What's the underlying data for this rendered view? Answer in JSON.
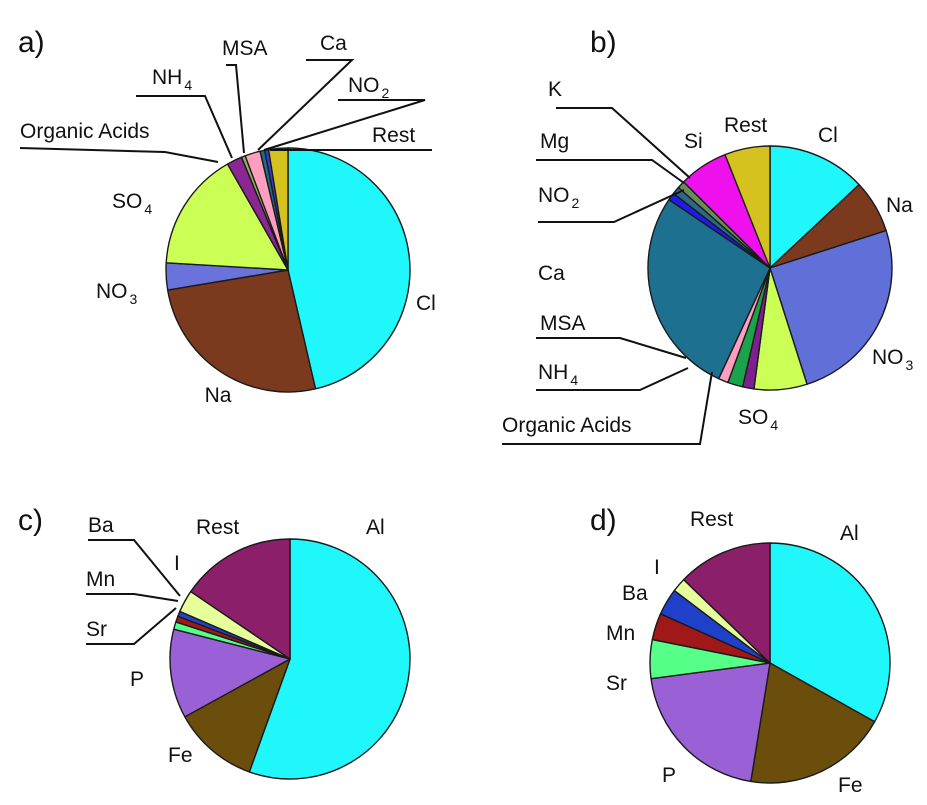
{
  "chart_data": [
    {
      "type": "pie",
      "panel_label": "a)",
      "start": "12 o'clock",
      "direction": "clockwise",
      "slices": [
        {
          "label": "Cl",
          "sub": "",
          "value": 45.5,
          "color": "#1ff7fb"
        },
        {
          "label": "Na",
          "sub": "",
          "value": 25.5,
          "color": "#7b3a1e"
        },
        {
          "label": "NO",
          "sub": "3",
          "value": 3.5,
          "color": "#6a72dc"
        },
        {
          "label": "SO",
          "sub": "4",
          "value": 15.5,
          "color": "#ccff55"
        },
        {
          "label": "Organic Acids",
          "sub": "",
          "value": 2.0,
          "color": "#8c2693"
        },
        {
          "label": "NH",
          "sub": "4",
          "value": 0.5,
          "color": "#8ab85a"
        },
        {
          "label": "MSA",
          "sub": "",
          "value": 2.0,
          "color": "#ff9fc0"
        },
        {
          "label": "Ca",
          "sub": "",
          "value": 0.6,
          "color": "#1a6e8a"
        },
        {
          "label": "NO",
          "sub": "2",
          "value": 0.5,
          "color": "#3a3ad8"
        },
        {
          "label": "Rest",
          "sub": "",
          "value": 2.5,
          "color": "#d6c21f"
        }
      ]
    },
    {
      "type": "pie",
      "panel_label": "b)",
      "start": "12 o'clock",
      "direction": "clockwise",
      "slices": [
        {
          "label": "Cl",
          "sub": "",
          "value": 13.0,
          "color": "#1ff7fb"
        },
        {
          "label": "Na",
          "sub": "",
          "value": 7.0,
          "color": "#7b3a1e"
        },
        {
          "label": "NO",
          "sub": "3",
          "value": 25.0,
          "color": "#6070d8"
        },
        {
          "label": "SO",
          "sub": "4",
          "value": 7.0,
          "color": "#ccff55"
        },
        {
          "label": "Organic Acids",
          "sub": "",
          "value": 1.5,
          "color": "#7e1f90"
        },
        {
          "label": "NH",
          "sub": "4",
          "value": 2.0,
          "color": "#1aa34a"
        },
        {
          "label": "MSA",
          "sub": "",
          "value": 1.3,
          "color": "#ff9fc0"
        },
        {
          "label": "Ca",
          "sub": "",
          "value": 27.5,
          "color": "#1e7090"
        },
        {
          "label": "NO",
          "sub": "2",
          "value": 1.0,
          "color": "#1c1cf0"
        },
        {
          "label": "Mg",
          "sub": "",
          "value": 1.0,
          "color": "#2a6a88"
        },
        {
          "label": "K",
          "sub": "",
          "value": 1.0,
          "color": "#6a8a5a"
        },
        {
          "label": "Si",
          "sub": "",
          "value": 6.5,
          "color": "#ee11ee"
        },
        {
          "label": "Rest",
          "sub": "",
          "value": 6.0,
          "color": "#d6c21f"
        }
      ]
    },
    {
      "type": "pie",
      "panel_label": "c)",
      "start": "12 o'clock",
      "direction": "clockwise",
      "slices": [
        {
          "label": "Al",
          "sub": "",
          "value": 55.5,
          "color": "#1ff7fb"
        },
        {
          "label": "Fe",
          "sub": "",
          "value": 11.5,
          "color": "#6b4e0c"
        },
        {
          "label": "P",
          "sub": "",
          "value": 12.0,
          "color": "#9a60d6"
        },
        {
          "label": "Sr",
          "sub": "",
          "value": 1.0,
          "color": "#55ff88"
        },
        {
          "label": "Mn",
          "sub": "",
          "value": 0.8,
          "color": "#a01818"
        },
        {
          "label": "Ba",
          "sub": "",
          "value": 0.7,
          "color": "#2040c8"
        },
        {
          "label": "I",
          "sub": "",
          "value": 3.0,
          "color": "#e6ff9a"
        },
        {
          "label": "Rest",
          "sub": "",
          "value": 15.5,
          "color": "#8c1f6a"
        }
      ]
    },
    {
      "type": "pie",
      "panel_label": "d)",
      "start": "12 o'clock",
      "direction": "clockwise",
      "slices": [
        {
          "label": "Al",
          "sub": "",
          "value": 35.0,
          "color": "#1ff7fb"
        },
        {
          "label": "Fe",
          "sub": "",
          "value": 20.5,
          "color": "#6b4e0c"
        },
        {
          "label": "P",
          "sub": "",
          "value": 21.5,
          "color": "#9a60d6"
        },
        {
          "label": "Sr",
          "sub": "",
          "value": 5.5,
          "color": "#55ff88"
        },
        {
          "label": "Mn",
          "sub": "",
          "value": 3.8,
          "color": "#a01818"
        },
        {
          "label": "Ba",
          "sub": "",
          "value": 3.8,
          "color": "#1f40c8"
        },
        {
          "label": "I",
          "sub": "",
          "value": 2.0,
          "color": "#e6ff9a"
        },
        {
          "label": "Rest",
          "sub": "",
          "value": 13.5,
          "color": "#8c1f6a"
        }
      ]
    }
  ]
}
